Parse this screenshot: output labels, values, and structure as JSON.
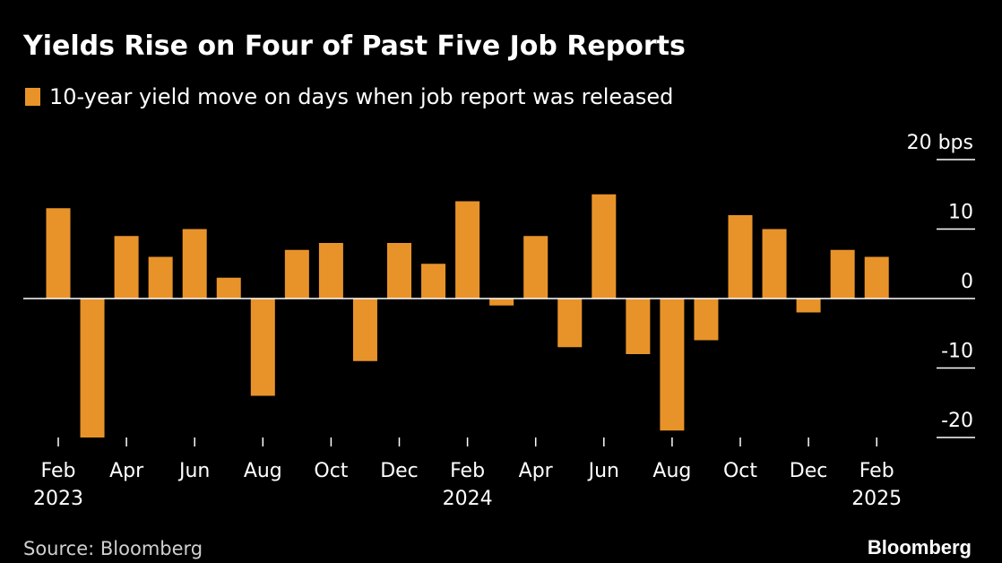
{
  "title": "Yields Rise on Four of Past Five Job Reports",
  "legend_label": "10-year yield move on days when job report was released",
  "source": "Source: Bloomberg",
  "brand": "Bloomberg",
  "colors": {
    "bar": "#e8932a",
    "background": "#000000",
    "text": "#ffffff",
    "axis": "#ffffff"
  },
  "chart_data": {
    "type": "bar",
    "ylabel": "",
    "y_unit": "bps",
    "ylim": [
      -20,
      20
    ],
    "yticks": [
      20,
      10,
      0,
      -10,
      -20
    ],
    "ytick_labels": [
      "20 bps",
      "10",
      "0",
      "-10",
      "-20"
    ],
    "x_tick_labels": [
      {
        "month": "Feb",
        "year": "2023"
      },
      {
        "month": "Apr",
        "year": ""
      },
      {
        "month": "Jun",
        "year": ""
      },
      {
        "month": "Aug",
        "year": ""
      },
      {
        "month": "Oct",
        "year": ""
      },
      {
        "month": "Dec",
        "year": ""
      },
      {
        "month": "Feb",
        "year": "2024"
      },
      {
        "month": "Apr",
        "year": ""
      },
      {
        "month": "Jun",
        "year": ""
      },
      {
        "month": "Aug",
        "year": ""
      },
      {
        "month": "Oct",
        "year": ""
      },
      {
        "month": "Dec",
        "year": ""
      },
      {
        "month": "Feb",
        "year": "2025"
      }
    ],
    "categories": [
      "Feb 2023",
      "Mar 2023",
      "Apr 2023",
      "May 2023",
      "Jun 2023",
      "Jul 2023",
      "Aug 2023",
      "Sep 2023",
      "Oct 2023",
      "Nov 2023",
      "Dec 2023",
      "Jan 2024",
      "Feb 2024",
      "Mar 2024",
      "Apr 2024",
      "May 2024",
      "Jun 2024",
      "Jul 2024",
      "Aug 2024",
      "Sep 2024",
      "Oct 2024",
      "Nov 2024",
      "Dec 2024",
      "Jan 2025",
      "Feb 2025"
    ],
    "series": [
      {
        "name": "10-year yield move on days when job report was released",
        "values": [
          13,
          -20,
          9,
          6,
          10,
          3,
          -14,
          7,
          8,
          -9,
          8,
          5,
          14,
          -1,
          9,
          -7,
          15,
          -8,
          -19,
          -6,
          12,
          10,
          -2,
          7,
          6
        ]
      }
    ]
  }
}
